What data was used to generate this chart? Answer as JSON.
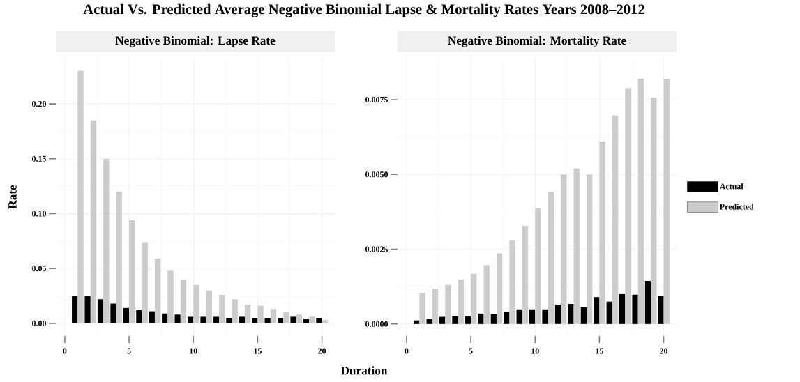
{
  "chart_data": [
    {
      "type": "bar",
      "title": "Actual Vs. Predicted Average Negative Binomial Lapse & Mortality Rates Years 2008–2012",
      "subtitle": "Negative Binomial: Lapse Rate",
      "xlabel": "Duration",
      "ylabel": "Rate",
      "x": [
        1,
        2,
        3,
        4,
        5,
        6,
        7,
        8,
        9,
        10,
        11,
        12,
        13,
        14,
        15,
        16,
        17,
        18,
        19,
        20
      ],
      "series": [
        {
          "color": "#000000",
          "values": [
            0.025,
            0.025,
            0.022,
            0.018,
            0.014,
            0.012,
            0.011,
            0.009,
            0.008,
            0.006,
            0.006,
            0.006,
            0.005,
            0.006,
            0.005,
            0.005,
            0.005,
            0.006,
            0.004,
            0.005
          ]
        },
        {
          "color": "#cccccc",
          "values": [
            0.23,
            0.185,
            0.15,
            0.12,
            0.094,
            0.074,
            0.059,
            0.048,
            0.04,
            0.035,
            0.03,
            0.026,
            0.022,
            0.017,
            0.016,
            0.013,
            0.01,
            0.008,
            0.006,
            0.003
          ]
        }
      ],
      "xlim": [
        -0.7,
        21.0
      ],
      "xticks": [
        0,
        5,
        10,
        15,
        20
      ],
      "ylim": [
        -0.0115,
        0.242
      ],
      "yticks": [
        {
          "value": 0,
          "label": "0.00"
        },
        {
          "value": 0.05,
          "label": "0.05"
        },
        {
          "value": 0.1,
          "label": "0.10"
        },
        {
          "value": 0.15,
          "label": "0.15"
        },
        {
          "value": 0.2,
          "label": "0.20"
        }
      ],
      "grid": true,
      "legend": false
    },
    {
      "type": "bar",
      "subtitle": "Negative Binomial: Mortality Rate",
      "x": [
        1,
        2,
        3,
        4,
        5,
        6,
        7,
        8,
        9,
        10,
        11,
        12,
        13,
        14,
        15,
        16,
        17,
        18,
        19,
        20
      ],
      "series": [
        {
          "name": "Actual",
          "color": "#000000",
          "values": [
            0.00012,
            0.00017,
            0.00024,
            0.00026,
            0.00026,
            0.00035,
            0.00033,
            0.0004,
            0.00049,
            0.00049,
            0.00049,
            0.00065,
            0.00067,
            0.00056,
            0.0009,
            0.00075,
            0.001,
            0.00098,
            0.00144,
            0.00094
          ]
        },
        {
          "name": "Predicted",
          "color": "#cccccc",
          "values": [
            0.00104,
            0.00117,
            0.00131,
            0.00149,
            0.00168,
            0.00197,
            0.00236,
            0.0028,
            0.00328,
            0.00387,
            0.00442,
            0.005,
            0.0052,
            0.005,
            0.0061,
            0.00697,
            0.00789,
            0.0082,
            0.00757,
            0.0082
          ]
        }
      ],
      "xlim": [
        -0.7,
        21.0
      ],
      "xticks": [
        0,
        5,
        10,
        15,
        20
      ],
      "ylim": [
        -0.0004,
        0.0089
      ],
      "yticks": [
        {
          "value": 0,
          "label": "0.0000"
        },
        {
          "value": 0.0025,
          "label": "0.0025"
        },
        {
          "value": 0.005,
          "label": "0.0050"
        },
        {
          "value": 0.0075,
          "label": "0.0075"
        }
      ],
      "grid": true,
      "legend": "right"
    }
  ]
}
